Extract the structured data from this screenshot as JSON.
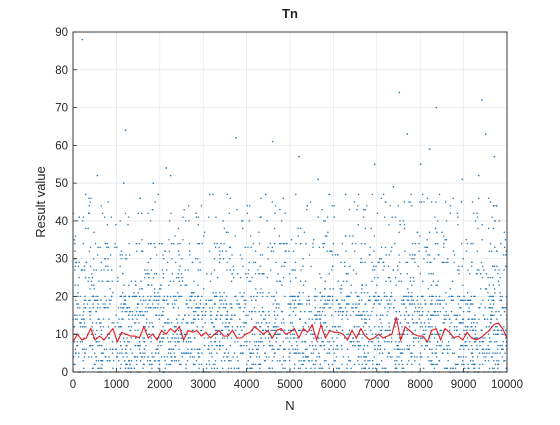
{
  "chart_data": {
    "type": "scatter",
    "title": "Tn",
    "xlabel": "N",
    "ylabel": "Result value",
    "xlim": [
      0,
      10000
    ],
    "ylim": [
      0,
      90
    ],
    "xticks": [
      0,
      1000,
      2000,
      3000,
      4000,
      5000,
      6000,
      7000,
      8000,
      9000,
      10000
    ],
    "yticks": [
      0,
      10,
      20,
      30,
      40,
      50,
      60,
      70,
      80,
      90
    ],
    "grid": true,
    "legend": "none",
    "colors": {
      "scatter": "#1f77b4",
      "line": "#e8191c"
    },
    "series": [
      {
        "kind": "scatter",
        "note_points": "sampled, densely filled for y <= 20; sparse above",
        "outliers": [
          {
            "x": 215,
            "y": 88
          },
          {
            "x": 1210,
            "y": 64
          },
          {
            "x": 2150,
            "y": 54
          },
          {
            "x": 3760,
            "y": 62
          },
          {
            "x": 4600,
            "y": 61
          },
          {
            "x": 5210,
            "y": 57
          },
          {
            "x": 7520,
            "y": 74
          },
          {
            "x": 7700,
            "y": 63
          },
          {
            "x": 8370,
            "y": 70
          },
          {
            "x": 8010,
            "y": 55
          },
          {
            "x": 8220,
            "y": 59
          },
          {
            "x": 9420,
            "y": 72
          },
          {
            "x": 9510,
            "y": 63
          },
          {
            "x": 9710,
            "y": 57
          },
          {
            "x": 6950,
            "y": 55
          },
          {
            "x": 560,
            "y": 52
          },
          {
            "x": 1170,
            "y": 50
          },
          {
            "x": 1850,
            "y": 50
          },
          {
            "x": 2250,
            "y": 52
          },
          {
            "x": 5650,
            "y": 51
          },
          {
            "x": 7380,
            "y": 49
          },
          {
            "x": 8970,
            "y": 51
          },
          {
            "x": 9350,
            "y": 52
          },
          {
            "x": 1550,
            "y": 46
          },
          {
            "x": 3150,
            "y": 47
          },
          {
            "x": 4440,
            "y": 47
          },
          {
            "x": 6280,
            "y": 47
          },
          {
            "x": 8950,
            "y": 45
          }
        ]
      },
      {
        "kind": "line",
        "values": [
          8.0,
          10.0,
          8.5,
          9.0,
          11.5,
          8.5,
          9.5,
          8.5,
          10.0,
          11.5,
          8.0,
          10.5,
          10.0,
          9.5,
          9.5,
          9.0,
          12.0,
          9.0,
          10.0,
          8.5,
          11.0,
          10.0,
          11.5,
          10.5,
          12.0,
          8.5,
          11.0,
          10.5,
          11.0,
          9.5,
          10.5,
          9.0,
          10.0,
          11.0,
          9.5,
          9.5,
          11.0,
          9.0,
          9.0,
          10.0,
          10.5,
          12.0,
          11.0,
          10.0,
          11.0,
          9.0,
          11.0,
          11.5,
          10.0,
          10.5,
          11.5,
          9.0,
          11.5,
          10.5,
          12.5,
          8.5,
          12.5,
          9.0,
          11.0,
          10.5,
          10.5,
          10.0,
          8.5,
          11.0,
          9.0,
          11.5,
          9.5,
          8.5,
          9.0,
          10.0,
          9.0,
          9.5,
          10.0,
          14.5,
          8.5,
          12.0,
          11.0,
          10.0,
          9.5,
          9.5,
          8.0,
          11.0,
          11.5,
          8.5,
          11.5,
          10.5,
          9.0,
          9.5,
          8.5,
          10.5,
          9.0,
          8.5,
          9.0,
          10.0,
          11.0,
          12.5,
          13.0,
          11.5,
          9.0
        ]
      }
    ]
  }
}
